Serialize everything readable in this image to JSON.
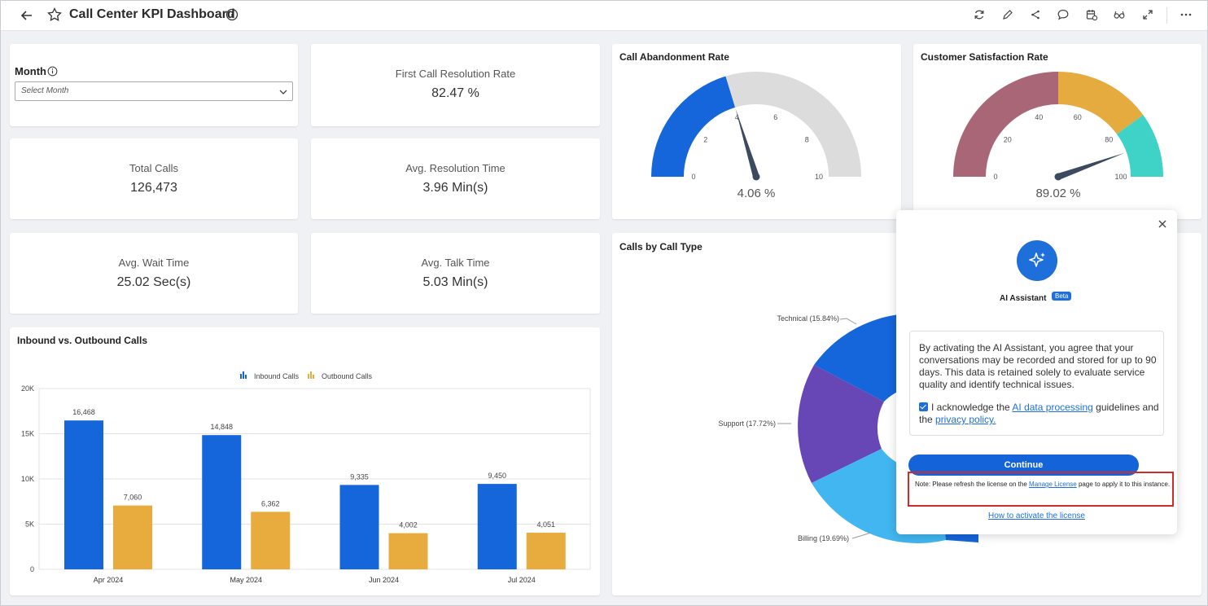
{
  "header": {
    "title": "Call Center KPI Dashboard"
  },
  "month_filter": {
    "label": "Month",
    "placeholder": "Select Month"
  },
  "kpis": {
    "fcr": {
      "label": "First Call Resolution Rate",
      "value": "82.47 %"
    },
    "total_calls": {
      "label": "Total Calls",
      "value": "126,473"
    },
    "avg_resolution": {
      "label": "Avg. Resolution Time",
      "value": "3.96 Min(s)"
    },
    "avg_wait": {
      "label": "Avg. Wait Time",
      "value": "25.02 Sec(s)"
    },
    "avg_talk": {
      "label": "Avg. Talk Time",
      "value": "5.03 Min(s)"
    }
  },
  "abandonment": {
    "title": "Call Abandonment Rate",
    "value": "4.06 %",
    "value_number": 4.06,
    "min": 0,
    "max": 10,
    "ticks": [
      "0",
      "2",
      "4",
      "6",
      "8",
      "10"
    ],
    "fill_color": "#1565db",
    "rest_color": "#dcdcdc"
  },
  "satisfaction": {
    "title": "Customer Satisfaction Rate",
    "value": "89.02 %",
    "value_number": 89.02,
    "min": 0,
    "max": 100,
    "ticks": [
      "0",
      "20",
      "40",
      "60",
      "80",
      "100"
    ],
    "bands": [
      {
        "from": 0,
        "to": 50,
        "color": "#a96677"
      },
      {
        "from": 50,
        "to": 80,
        "color": "#e5ab3e"
      },
      {
        "from": 80,
        "to": 100,
        "color": "#3fd2c7"
      }
    ]
  },
  "calls_by_type": {
    "title": "Calls by Call Type",
    "labels": [
      "Technical (15.84%)",
      "Support (17.72%)",
      "Billing (19.69%)"
    ]
  },
  "chart_data": {
    "type": "bar",
    "title": "Inbound vs. Outbound Calls",
    "categories": [
      "Apr 2024",
      "May 2024",
      "Jun 2024",
      "Jul 2024"
    ],
    "series": [
      {
        "name": "Inbound Calls",
        "values": [
          16468,
          14848,
          9335,
          9450
        ],
        "labels": [
          "16,468",
          "14,848",
          "9,335",
          "9,450"
        ],
        "color": "#1565db"
      },
      {
        "name": "Outbound Calls",
        "values": [
          7060,
          6362,
          4002,
          4051
        ],
        "labels": [
          "7,060",
          "6,362",
          "4,002",
          "4,051"
        ],
        "color": "#e8ab3e"
      }
    ],
    "yticks": [
      "0",
      "5K",
      "10K",
      "15K",
      "20K"
    ],
    "ylim": [
      0,
      20000
    ],
    "legend": "top-center",
    "grid": true
  },
  "ai_popup": {
    "title": "AI Assistant",
    "badge": "Beta",
    "consent": "By activating the AI Assistant, you agree that your conversations may be recorded and stored for up to 90 days. This data is retained solely to evaluate service quality and identify technical issues.",
    "ack_prefix": "I acknowledge the ",
    "ack_link1": "AI data processing",
    "ack_mid": " guidelines and the ",
    "ack_link2": "privacy policy.",
    "continue": "Continue",
    "note_prefix": "Note: Please refresh the license on the ",
    "note_link": "Manage License",
    "note_suffix": " page to apply it to this instance.",
    "howto": "How to activate the license"
  }
}
